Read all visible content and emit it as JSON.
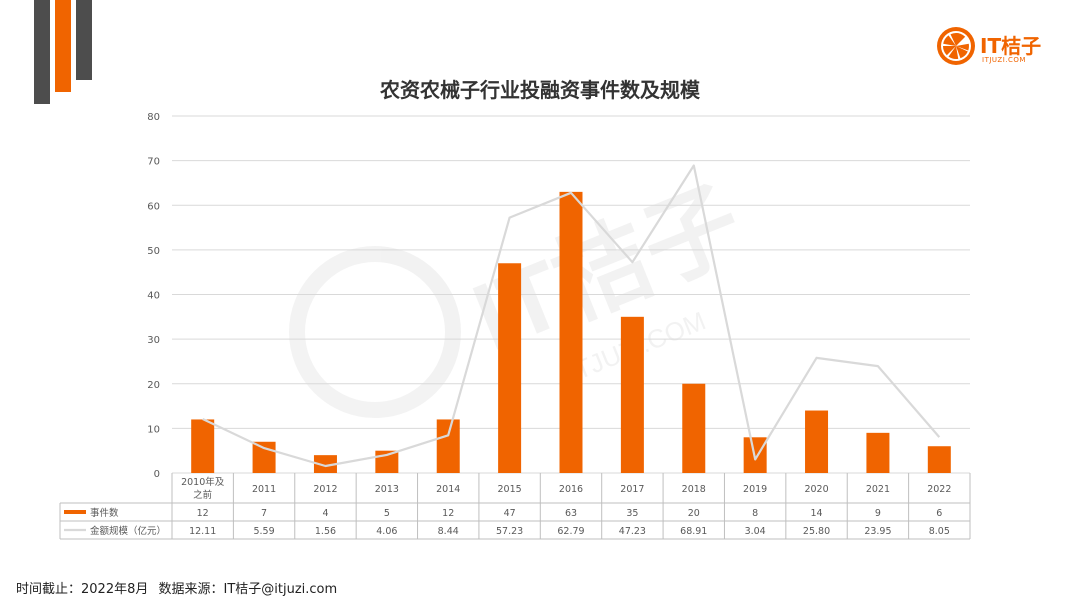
{
  "title": "农资农械子行业投融资事件数及规模",
  "logo": {
    "text": "IT桔子",
    "sub": "ITJUZI.COM",
    "watermark": "IT桔子",
    "watermark_sub": "ITJUZI.COM"
  },
  "footer": {
    "cutoff": "时间截止：2022年8月",
    "source": "数据来源：IT桔子@itjuzi.com"
  },
  "colors": {
    "bar": "#f06400",
    "line": "#d9d9d9",
    "grid": "#d9d9d9"
  },
  "chart_data": {
    "type": "bar",
    "title": "农资农械子行业投融资事件数及规模",
    "categories": [
      "2010年及之前",
      "2011",
      "2012",
      "2013",
      "2014",
      "2015",
      "2016",
      "2017",
      "2018",
      "2019",
      "2020",
      "2021",
      "2022"
    ],
    "ylim": [
      0,
      80
    ],
    "yticks": [
      0,
      10,
      20,
      30,
      40,
      50,
      60,
      70,
      80
    ],
    "grid": true,
    "series": [
      {
        "name": "事件数",
        "type": "bar",
        "values": [
          12,
          7,
          4,
          5,
          12,
          47,
          63,
          35,
          20,
          8,
          14,
          9,
          6
        ],
        "labels": [
          "12",
          "7",
          "4",
          "5",
          "12",
          "47",
          "63",
          "35",
          "20",
          "8",
          "14",
          "9",
          "6"
        ]
      },
      {
        "name": "金额规模（亿元）",
        "type": "line",
        "values": [
          12.11,
          5.59,
          1.56,
          4.06,
          8.44,
          57.23,
          62.79,
          47.23,
          68.91,
          3.04,
          25.8,
          23.95,
          8.05
        ],
        "labels": [
          "12.11",
          "5.59",
          "1.56",
          "4.06",
          "8.44",
          "57.23",
          "62.79",
          "47.23",
          "68.91",
          "3.04",
          "25.80",
          "23.95",
          "8.05"
        ]
      }
    ]
  }
}
